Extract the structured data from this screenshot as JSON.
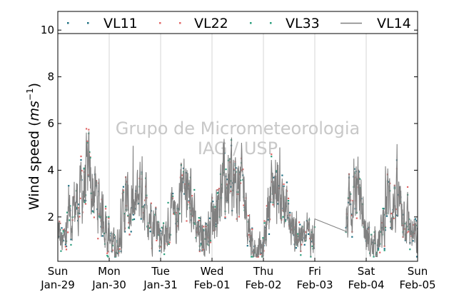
{
  "chart_data": {
    "type": "line",
    "ylabel": "Wind speed (ms⁻¹)",
    "ylabel_main": "Wind speed (",
    "ylabel_unit_ms": "ms",
    "ylabel_unit_exp": "−1",
    "ylabel_close": ")",
    "ylim": [
      0.1,
      10.8
    ],
    "yticks": [
      2,
      4,
      6,
      8,
      10
    ],
    "xlim": [
      0,
      7
    ],
    "xticks": [
      {
        "day": "Sun",
        "date": "Jan-29",
        "x": 0
      },
      {
        "day": "Mon",
        "date": "Jan-30",
        "x": 1
      },
      {
        "day": "Tue",
        "date": "Jan-31",
        "x": 2
      },
      {
        "day": "Wed",
        "date": "Feb-01",
        "x": 3
      },
      {
        "day": "Thu",
        "date": "Feb-02",
        "x": 4
      },
      {
        "day": "Fri",
        "date": "Feb-03",
        "x": 5
      },
      {
        "day": "Sat",
        "date": "Feb-04",
        "x": 6
      },
      {
        "day": "Sun",
        "date": "Feb-05",
        "x": 7
      }
    ],
    "grid": "vertical",
    "legend_position": "top",
    "watermark": [
      "Grupo de Micrometeorologia",
      "IAG / USP"
    ],
    "series": [
      {
        "name": "VL11",
        "style": "dots",
        "color": "#1e6f82"
      },
      {
        "name": "VL22",
        "style": "dots",
        "color": "#e06666"
      },
      {
        "name": "VL33",
        "style": "dots",
        "color": "#2a9d7c"
      },
      {
        "name": "VL14",
        "style": "line",
        "color": "#808080"
      }
    ],
    "trend": {
      "x": [
        0.0,
        0.1,
        0.2,
        0.3,
        0.4,
        0.5,
        0.6,
        0.7,
        0.8,
        0.9,
        1.0,
        1.1,
        1.2,
        1.3,
        1.4,
        1.5,
        1.6,
        1.7,
        1.8,
        1.9,
        2.0,
        2.1,
        2.2,
        2.3,
        2.4,
        2.5,
        2.6,
        2.7,
        2.8,
        2.9,
        3.0,
        3.1,
        3.2,
        3.3,
        3.4,
        3.5,
        3.6,
        3.7,
        3.8,
        3.9,
        4.0,
        4.1,
        4.2,
        4.3,
        4.4,
        4.5,
        4.6,
        4.7,
        4.8,
        4.9,
        5.0,
        5.6,
        5.7,
        5.8,
        5.9,
        6.0,
        6.1,
        6.2,
        6.3,
        6.4,
        6.5,
        6.6,
        6.7,
        6.8,
        6.9,
        7.0
      ],
      "y": [
        1.4,
        0.7,
        1.8,
        2.5,
        2.6,
        3.3,
        3.6,
        3.1,
        2.5,
        2.1,
        1.3,
        0.6,
        1.1,
        2.6,
        2.4,
        2.1,
        3.4,
        2.7,
        2.2,
        1.8,
        1.3,
        1.2,
        1.9,
        1.6,
        3.7,
        3.0,
        2.6,
        1.2,
        1.1,
        1.3,
        2.1,
        2.5,
        3.3,
        3.4,
        3.3,
        3.2,
        3.3,
        2.0,
        0.6,
        0.7,
        0.5,
        2.8,
        3.3,
        3.4,
        2.6,
        1.7,
        1.4,
        1.3,
        1.0,
        1.2,
        1.3,
        1.6,
        2.7,
        3.3,
        2.6,
        1.2,
        0.8,
        0.7,
        1.2,
        2.8,
        2.6,
        2.5,
        2.6,
        1.9,
        1.2,
        0.9
      ]
    }
  }
}
